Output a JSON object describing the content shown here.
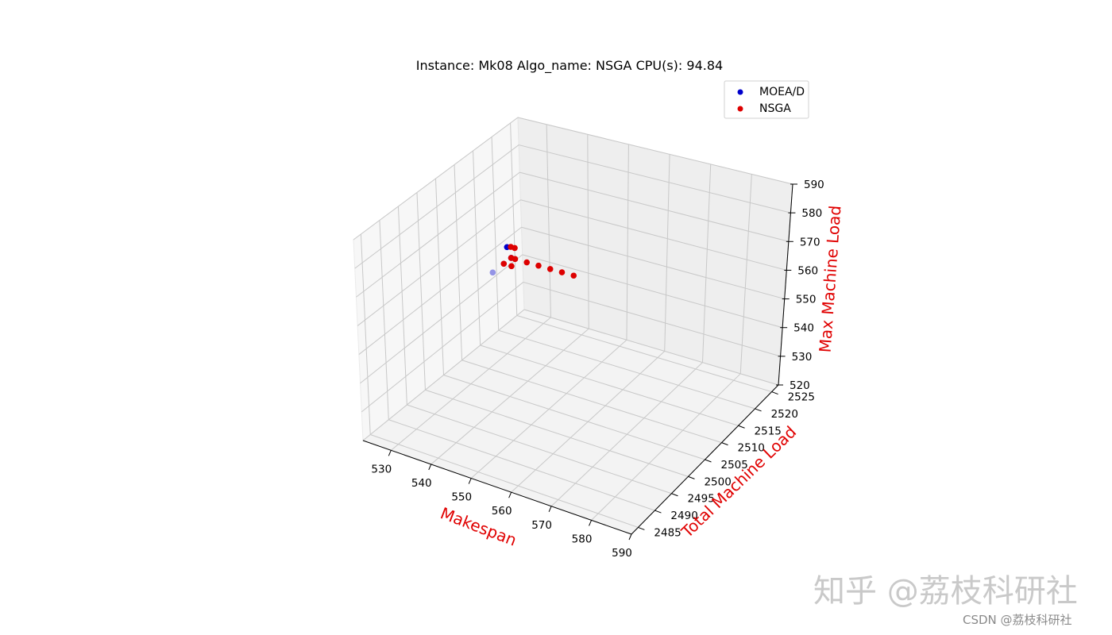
{
  "chart_data": {
    "type": "scatter3d",
    "title": "Instance: Mk08 Algo_name: NSGA CPU(s): 94.84",
    "xlabel": "Makespan",
    "ylabel": "Total Machine Load",
    "zlabel": "Max Machine Load",
    "label_color": "#e00000",
    "xlim": [
      523,
      590
    ],
    "ylim": [
      2483,
      2527
    ],
    "zlim": [
      520,
      590
    ],
    "x_ticks": [
      530,
      540,
      550,
      560,
      570,
      580,
      590
    ],
    "y_ticks": [
      2485,
      2490,
      2495,
      2500,
      2505,
      2510,
      2515,
      2520,
      2525
    ],
    "z_ticks": [
      520,
      530,
      540,
      550,
      560,
      570,
      580,
      590
    ],
    "grid": true,
    "legend_position": "top-right",
    "series": [
      {
        "name": "MOEA/D",
        "color": "#0000cc",
        "points": [
          {
            "x": 523,
            "y": 2519,
            "z": 542
          },
          {
            "x": 523,
            "y": 2522,
            "z": 542
          },
          {
            "x": 523,
            "y": 2523,
            "z": 547
          },
          {
            "x": 523,
            "y": 2524,
            "z": 542
          }
        ]
      },
      {
        "name": "NSGA",
        "color": "#dd0000",
        "points": [
          {
            "x": 523,
            "y": 2522,
            "z": 542
          },
          {
            "x": 524,
            "y": 2524,
            "z": 546
          },
          {
            "x": 523,
            "y": 2524,
            "z": 546
          },
          {
            "x": 523,
            "y": 2524,
            "z": 539
          },
          {
            "x": 523,
            "y": 2524,
            "z": 542
          },
          {
            "x": 524,
            "y": 2524,
            "z": 542
          },
          {
            "x": 527,
            "y": 2524,
            "z": 542
          },
          {
            "x": 530,
            "y": 2524,
            "z": 542
          },
          {
            "x": 533,
            "y": 2524,
            "z": 542
          },
          {
            "x": 536,
            "y": 2524,
            "z": 542
          },
          {
            "x": 539,
            "y": 2524,
            "z": 542
          }
        ]
      }
    ]
  },
  "watermark": {
    "main": "知乎 @荔枝科研社",
    "footer": "CSDN @荔枝科研社"
  }
}
